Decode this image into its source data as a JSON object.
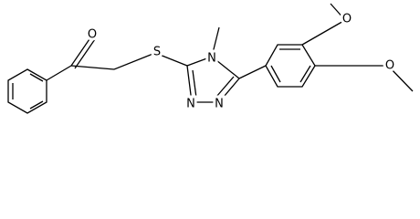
{
  "atoms": {
    "carbonyl_oxygen": "O",
    "sulfur": "S",
    "ring_nitrogen_4": "N",
    "ring_nitrogen_1": "N",
    "ring_nitrogen_2": "N",
    "methoxy_oxygen_3": "O",
    "methoxy_oxygen_4": "O"
  }
}
